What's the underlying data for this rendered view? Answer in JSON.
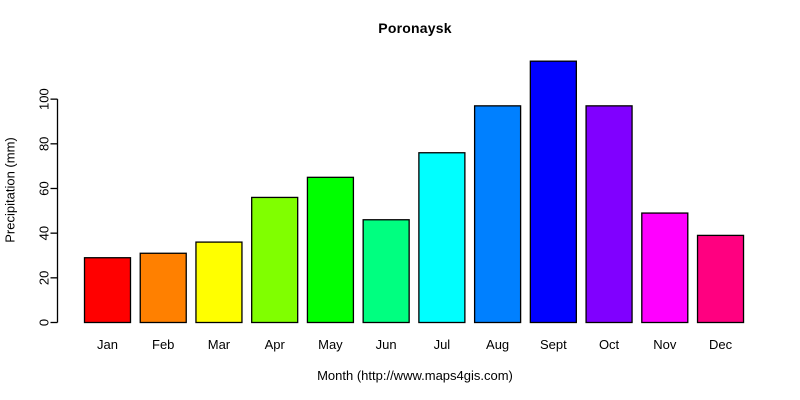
{
  "chart_data": {
    "type": "bar",
    "title": "Poronaysk",
    "xlabel": "Month (http://www.maps4gis.com)",
    "ylabel": "Precipitation (mm)",
    "categories": [
      "Jan",
      "Feb",
      "Mar",
      "Apr",
      "May",
      "Jun",
      "Jul",
      "Aug",
      "Sept",
      "Oct",
      "Nov",
      "Dec"
    ],
    "values": [
      29,
      31,
      36,
      56,
      65,
      46,
      76,
      97,
      117,
      97,
      49,
      39
    ],
    "bar_colors": [
      "#FF0000",
      "#FF8000",
      "#FFFF00",
      "#80FF00",
      "#00FF00",
      "#00FF80",
      "#00FFFF",
      "#0080FF",
      "#0000FF",
      "#8000FF",
      "#FF00FF",
      "#FF0080"
    ],
    "bar_border_color": "#000000",
    "axis_color": "#000000",
    "background_color": "#FFFFFF",
    "yticks": [
      0,
      20,
      40,
      60,
      80,
      100
    ],
    "ylim": [
      0,
      120
    ],
    "grid": false,
    "legend": null
  }
}
